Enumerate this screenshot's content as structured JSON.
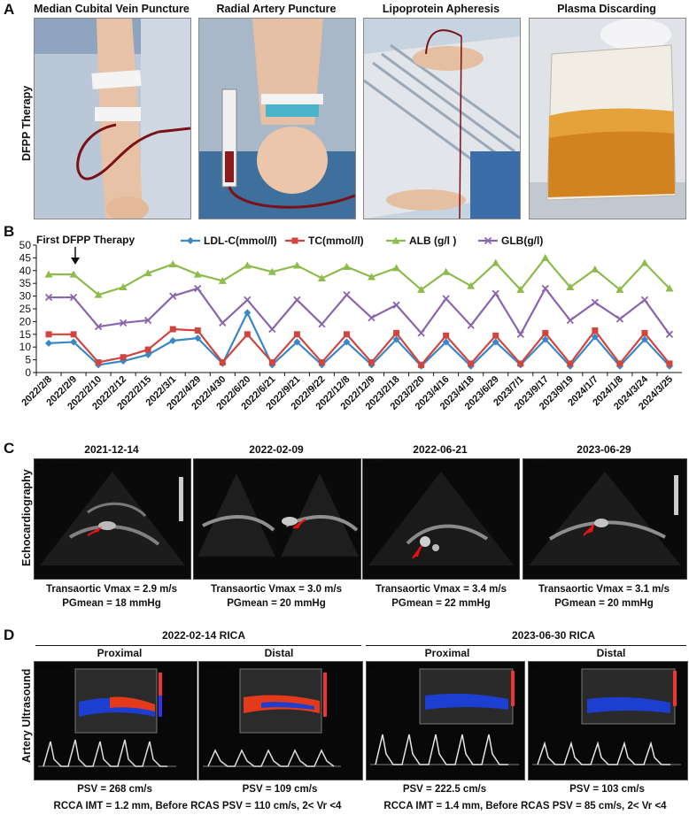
{
  "panel_labels": {
    "a": "A",
    "b": "B",
    "c": "C",
    "d": "D"
  },
  "panel_a": {
    "row_label": "DFPP Therapy",
    "photos": [
      {
        "title": "Median Cubital Vein Puncture"
      },
      {
        "title": "Radial Artery Puncture"
      },
      {
        "title": "Lipoprotein Apheresis"
      },
      {
        "title": "Plasma Discarding"
      }
    ]
  },
  "chart_data": {
    "type": "line",
    "title": "",
    "annotation": "First DFPP Therapy",
    "xlabel": "",
    "ylabel": "",
    "ylim": [
      0,
      50
    ],
    "yticks": [
      0,
      5,
      10,
      15,
      20,
      25,
      30,
      35,
      40,
      45,
      50
    ],
    "grid": false,
    "legend_position": "top",
    "categories": [
      "2022/2/8",
      "2022/2/9",
      "2022/2/10",
      "2022/2/12",
      "2022/2/15",
      "2022/3/1",
      "2022/4/29",
      "2022/4/30",
      "2022/6/20",
      "2022/6/21",
      "2022/9/21",
      "2022/9/22",
      "2022/12/8",
      "2022/12/9",
      "2023/2/18",
      "2023/2/20",
      "2023/4/16",
      "2023/4/18",
      "2023/6/29",
      "2023/7/1",
      "2023/9/17",
      "2023/9/19",
      "2024/1/7",
      "2024/1/8",
      "2024/3/24",
      "2024/3/25"
    ],
    "series": [
      {
        "name": "LDL-C(mmol/l)",
        "color": "#3a87c8",
        "marker": "diamond",
        "values": [
          11.5,
          12,
          3,
          4.5,
          7,
          12.5,
          13.5,
          3.5,
          23.5,
          3,
          12,
          3,
          12,
          3,
          13,
          2.5,
          12,
          2.5,
          12,
          3,
          13,
          2.5,
          14,
          2.5,
          13,
          2.5
        ]
      },
      {
        "name": "TC(mmol/l)",
        "color": "#d0453f",
        "marker": "square",
        "values": [
          15,
          15,
          4,
          6,
          9,
          17,
          16.5,
          4,
          15,
          4,
          15,
          4,
          15,
          4,
          15.5,
          3,
          14.5,
          3.5,
          14.5,
          3.5,
          15.5,
          3.5,
          16.5,
          3.5,
          15.5,
          3.5
        ]
      },
      {
        "name": "ALB (g/l )",
        "color": "#8dbb4c",
        "marker": "triangle",
        "values": [
          38.5,
          38.5,
          30.5,
          33.5,
          39,
          42.5,
          38.5,
          36,
          42,
          39.5,
          42,
          37,
          41.5,
          37.5,
          41,
          32.5,
          39.5,
          34,
          43,
          32.5,
          45,
          33.5,
          40.5,
          32.5,
          43,
          33
        ]
      },
      {
        "name": "GLB(g/l)",
        "color": "#8a64ad",
        "marker": "x",
        "values": [
          29.5,
          29.5,
          18,
          19.5,
          20.5,
          30,
          33,
          19.5,
          28.5,
          17,
          28.5,
          19,
          30.5,
          21.5,
          26.5,
          15.5,
          29,
          18.5,
          31,
          15,
          33,
          20.5,
          27.5,
          21,
          28.5,
          15
        ]
      }
    ]
  },
  "panel_c": {
    "row_label": "Echocardiography",
    "studies": [
      {
        "date": "2021-12-14",
        "vmax": "Transaortic Vmax = 2.9 m/s",
        "pg": "PGmean = 18 mmHg"
      },
      {
        "date": "2022-02-09",
        "vmax": "Transaortic Vmax = 3.0 m/s",
        "pg": "PGmean = 20 mmHg"
      },
      {
        "date": "2022-06-21",
        "vmax": "Transaortic Vmax = 3.4 m/s",
        "pg": "PGmean = 22 mmHg"
      },
      {
        "date": "2023-06-29",
        "vmax": "Transaortic Vmax = 3.1 m/s",
        "pg": "PGmean = 20 mmHg"
      }
    ]
  },
  "panel_d": {
    "row_label": "Artery Ultrasound",
    "groups": [
      {
        "title": "2022-02-14 RICA",
        "proximal": "Proximal",
        "distal": "Distal",
        "psv_prox": "PSV = 268 cm/s",
        "psv_dist": "PSV = 109 cm/s",
        "summary": "RCCA IMT = 1.2 mm,  Before RCAS PSV = 110 cm/s,  2< Vr <4"
      },
      {
        "title": "2023-06-30 RICA",
        "proximal": "Proximal",
        "distal": "Distal",
        "psv_prox": "PSV = 222.5 cm/s",
        "psv_dist": "PSV = 103 cm/s",
        "summary": "RCCA IMT = 1.4 mm,  Before RCAS PSV = 85 cm/s,  2< Vr <4"
      }
    ]
  }
}
